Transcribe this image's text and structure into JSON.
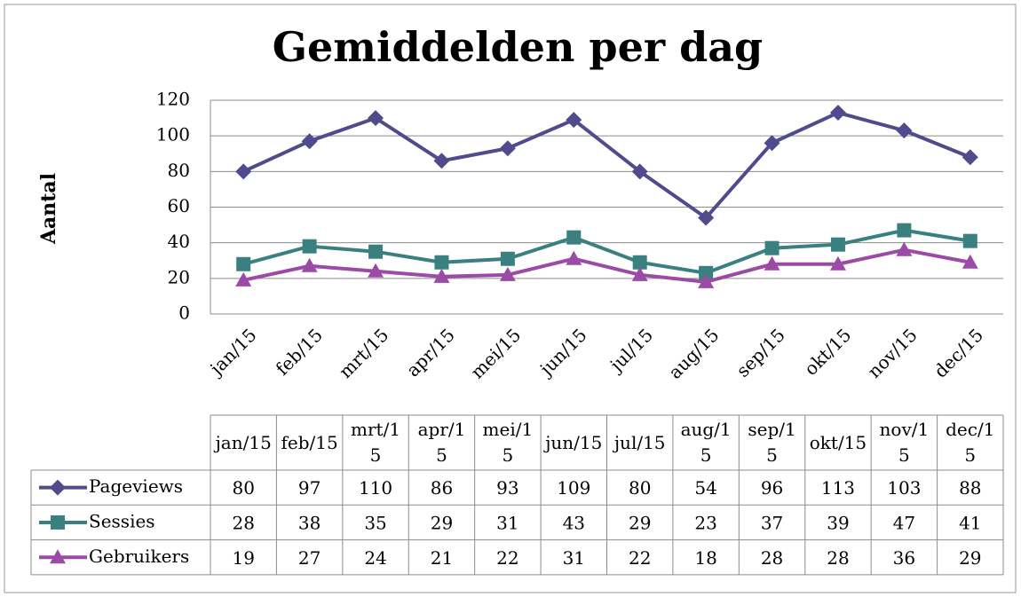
{
  "chart_data": {
    "type": "line",
    "title": "Gemiddelden per dag",
    "y_label": "Aantal",
    "categories": [
      "jan/15",
      "feb/15",
      "mrt/15",
      "apr/15",
      "mei/15",
      "jun/15",
      "jul/15",
      "aug/15",
      "sep/15",
      "okt/15",
      "nov/15",
      "dec/15"
    ],
    "series": [
      {
        "name": "Pageviews",
        "color": "#4f4b8c",
        "marker": "diamond",
        "values": [
          80,
          97,
          110,
          86,
          93,
          109,
          80,
          54,
          96,
          113,
          103,
          88
        ]
      },
      {
        "name": "Sessies",
        "color": "#3b8080",
        "marker": "square",
        "values": [
          28,
          38,
          35,
          29,
          31,
          43,
          29,
          23,
          37,
          39,
          47,
          41
        ]
      },
      {
        "name": "Gebruikers",
        "color": "#9b4aa6",
        "marker": "triangle",
        "values": [
          19,
          27,
          24,
          21,
          22,
          31,
          22,
          18,
          28,
          28,
          36,
          29
        ]
      }
    ],
    "ylim": [
      0,
      120
    ],
    "yticks": [
      0,
      20,
      40,
      60,
      80,
      100,
      120
    ],
    "grid": true,
    "data_table": true
  }
}
